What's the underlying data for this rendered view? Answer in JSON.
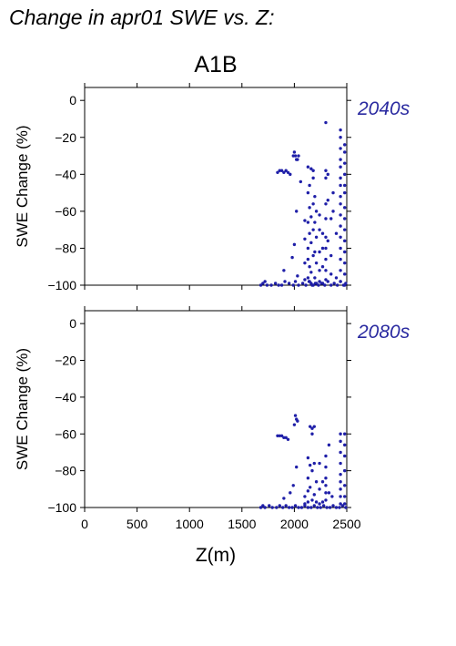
{
  "title": "Change in apr01 SWE vs. Z:",
  "scenario": "A1B",
  "colors": {
    "points": "#1f1fa8",
    "period_label": "#2a2aa0",
    "axis": "#000000"
  },
  "chart_data": [
    {
      "type": "scatter",
      "period": "2040s",
      "ylabel": "SWE Change (%)",
      "xlabel": "",
      "xlim": [
        0,
        2500
      ],
      "ylim": [
        -100,
        7
      ],
      "x_ticks": [
        "0",
        "500",
        "1000",
        "1500",
        "2000",
        "2500"
      ],
      "y_ticks": [
        "0",
        "−20",
        "−40",
        "−60",
        "−80",
        "−100"
      ],
      "x_tick_values": [
        0,
        500,
        1000,
        1500,
        2000,
        2500
      ],
      "y_tick_values": [
        0,
        -20,
        -40,
        -60,
        -80,
        -100
      ],
      "show_x_tick_labels": false,
      "points": [
        [
          1680,
          -100
        ],
        [
          1700,
          -99
        ],
        [
          1720,
          -98
        ],
        [
          1740,
          -100
        ],
        [
          1780,
          -100
        ],
        [
          1820,
          -99
        ],
        [
          1850,
          -100
        ],
        [
          1880,
          -100
        ],
        [
          1910,
          -98
        ],
        [
          1950,
          -99
        ],
        [
          1990,
          -100
        ],
        [
          2010,
          -98
        ],
        [
          2040,
          -100
        ],
        [
          2080,
          -99
        ],
        [
          2110,
          -100
        ],
        [
          2140,
          -98
        ],
        [
          2170,
          -100
        ],
        [
          2200,
          -99
        ],
        [
          2230,
          -100
        ],
        [
          2260,
          -99
        ],
        [
          2290,
          -100
        ],
        [
          2320,
          -98
        ],
        [
          2350,
          -100
        ],
        [
          2380,
          -99
        ],
        [
          2410,
          -100
        ],
        [
          2440,
          -98
        ],
        [
          2470,
          -100
        ],
        [
          2490,
          -99
        ],
        [
          1840,
          -39
        ],
        [
          1860,
          -38
        ],
        [
          1880,
          -38
        ],
        [
          1900,
          -39
        ],
        [
          1920,
          -38
        ],
        [
          1940,
          -39
        ],
        [
          1960,
          -40
        ],
        [
          1900,
          -92
        ],
        [
          1980,
          -85
        ],
        [
          2000,
          -78
        ],
        [
          2020,
          -60
        ],
        [
          2030,
          -95
        ],
        [
          2000,
          -28
        ],
        [
          2010,
          -30
        ],
        [
          2020,
          -32
        ],
        [
          2030,
          -32
        ],
        [
          2040,
          -30
        ],
        [
          1990,
          -30
        ],
        [
          2060,
          -44
        ],
        [
          2100,
          -65
        ],
        [
          2100,
          -75
        ],
        [
          2100,
          -88
        ],
        [
          2100,
          -97
        ],
        [
          2130,
          -36
        ],
        [
          2130,
          -50
        ],
        [
          2130,
          -66
        ],
        [
          2130,
          -80
        ],
        [
          2130,
          -86
        ],
        [
          2130,
          -96
        ],
        [
          2145,
          -46
        ],
        [
          2145,
          -58
        ],
        [
          2145,
          -72
        ],
        [
          2145,
          -90
        ],
        [
          2145,
          -98
        ],
        [
          2160,
          -37
        ],
        [
          2160,
          -63
        ],
        [
          2160,
          -77
        ],
        [
          2160,
          -93
        ],
        [
          2160,
          -99
        ],
        [
          2180,
          -38
        ],
        [
          2180,
          -42
        ],
        [
          2180,
          -56
        ],
        [
          2180,
          -70
        ],
        [
          2180,
          -84
        ],
        [
          2180,
          -100
        ],
        [
          2195,
          -52
        ],
        [
          2195,
          -66
        ],
        [
          2195,
          -82
        ],
        [
          2195,
          -96
        ],
        [
          2210,
          -60
        ],
        [
          2210,
          -74
        ],
        [
          2210,
          -88
        ],
        [
          2210,
          -99
        ],
        [
          2240,
          -62
        ],
        [
          2240,
          -70
        ],
        [
          2240,
          -82
        ],
        [
          2240,
          -92
        ],
        [
          2240,
          -98
        ],
        [
          2270,
          -72
        ],
        [
          2270,
          -80
        ],
        [
          2270,
          -90
        ],
        [
          2270,
          -99
        ],
        [
          2300,
          -12
        ],
        [
          2300,
          -38
        ],
        [
          2300,
          -42
        ],
        [
          2300,
          -56
        ],
        [
          2300,
          -64
        ],
        [
          2300,
          -74
        ],
        [
          2300,
          -80
        ],
        [
          2300,
          -86
        ],
        [
          2300,
          -92
        ],
        [
          2300,
          -97
        ],
        [
          2320,
          -40
        ],
        [
          2320,
          -54
        ],
        [
          2320,
          -76
        ],
        [
          2350,
          -64
        ],
        [
          2350,
          -84
        ],
        [
          2350,
          -94
        ],
        [
          2370,
          -50
        ],
        [
          2370,
          -60
        ],
        [
          2400,
          -72
        ],
        [
          2400,
          -96
        ],
        [
          2440,
          -16
        ],
        [
          2440,
          -20
        ],
        [
          2440,
          -26
        ],
        [
          2440,
          -32
        ],
        [
          2440,
          -36
        ],
        [
          2440,
          -42
        ],
        [
          2440,
          -46
        ],
        [
          2440,
          -52
        ],
        [
          2440,
          -56
        ],
        [
          2440,
          -62
        ],
        [
          2440,
          -68
        ],
        [
          2440,
          -74
        ],
        [
          2440,
          -80
        ],
        [
          2440,
          -86
        ],
        [
          2440,
          -92
        ],
        [
          2440,
          -98
        ],
        [
          2480,
          -24
        ],
        [
          2480,
          -28
        ],
        [
          2480,
          -34
        ],
        [
          2480,
          -40
        ],
        [
          2480,
          -46
        ],
        [
          2480,
          -50
        ],
        [
          2480,
          -58
        ],
        [
          2480,
          -64
        ],
        [
          2480,
          -70
        ],
        [
          2480,
          -76
        ],
        [
          2480,
          -82
        ],
        [
          2480,
          -88
        ],
        [
          2480,
          -94
        ],
        [
          2480,
          -100
        ]
      ]
    },
    {
      "type": "scatter",
      "period": "2080s",
      "ylabel": "SWE Change (%)",
      "xlabel": "Z(m)",
      "xlim": [
        0,
        2500
      ],
      "ylim": [
        -100,
        7
      ],
      "x_ticks": [
        "0",
        "500",
        "1000",
        "1500",
        "2000",
        "2500"
      ],
      "y_ticks": [
        "0",
        "−20",
        "−40",
        "−60",
        "−80",
        "−100"
      ],
      "x_tick_values": [
        0,
        500,
        1000,
        1500,
        2000,
        2500
      ],
      "y_tick_values": [
        0,
        -20,
        -40,
        -60,
        -80,
        -100
      ],
      "show_x_tick_labels": true,
      "points": [
        [
          1680,
          -100
        ],
        [
          1700,
          -99
        ],
        [
          1720,
          -100
        ],
        [
          1760,
          -99
        ],
        [
          1790,
          -100
        ],
        [
          1830,
          -100
        ],
        [
          1860,
          -99
        ],
        [
          1890,
          -100
        ],
        [
          1920,
          -99
        ],
        [
          1950,
          -100
        ],
        [
          1980,
          -100
        ],
        [
          2010,
          -99
        ],
        [
          2040,
          -100
        ],
        [
          2070,
          -100
        ],
        [
          2100,
          -99
        ],
        [
          2130,
          -100
        ],
        [
          2160,
          -100
        ],
        [
          2190,
          -99
        ],
        [
          2220,
          -100
        ],
        [
          2250,
          -100
        ],
        [
          2280,
          -99
        ],
        [
          2310,
          -100
        ],
        [
          2340,
          -100
        ],
        [
          2370,
          -99
        ],
        [
          2400,
          -100
        ],
        [
          2430,
          -100
        ],
        [
          2460,
          -99
        ],
        [
          2490,
          -100
        ],
        [
          1840,
          -61
        ],
        [
          1860,
          -61
        ],
        [
          1880,
          -61
        ],
        [
          1900,
          -62
        ],
        [
          1920,
          -62
        ],
        [
          1940,
          -63
        ],
        [
          1900,
          -95
        ],
        [
          1960,
          -92
        ],
        [
          1990,
          -88
        ],
        [
          2020,
          -78
        ],
        [
          2000,
          -55
        ],
        [
          2010,
          -50
        ],
        [
          2020,
          -52
        ],
        [
          2030,
          -53
        ],
        [
          2100,
          -94
        ],
        [
          2100,
          -98
        ],
        [
          2130,
          -73
        ],
        [
          2130,
          -84
        ],
        [
          2130,
          -91
        ],
        [
          2130,
          -97
        ],
        [
          2150,
          -56
        ],
        [
          2150,
          -77
        ],
        [
          2150,
          -89
        ],
        [
          2170,
          -57
        ],
        [
          2170,
          -60
        ],
        [
          2170,
          -80
        ],
        [
          2170,
          -96
        ],
        [
          2190,
          -56
        ],
        [
          2190,
          -76
        ],
        [
          2190,
          -93
        ],
        [
          2210,
          -86
        ],
        [
          2210,
          -97
        ],
        [
          2240,
          -76
        ],
        [
          2240,
          -90
        ],
        [
          2240,
          -98
        ],
        [
          2270,
          -86
        ],
        [
          2270,
          -97
        ],
        [
          2300,
          -72
        ],
        [
          2300,
          -78
        ],
        [
          2300,
          -84
        ],
        [
          2300,
          -88
        ],
        [
          2300,
          -92
        ],
        [
          2300,
          -96
        ],
        [
          2330,
          -66
        ],
        [
          2330,
          -92
        ],
        [
          2360,
          -94
        ],
        [
          2440,
          -60
        ],
        [
          2440,
          -64
        ],
        [
          2440,
          -70
        ],
        [
          2440,
          -76
        ],
        [
          2440,
          -82
        ],
        [
          2440,
          -86
        ],
        [
          2440,
          -90
        ],
        [
          2440,
          -94
        ],
        [
          2440,
          -98
        ],
        [
          2480,
          -60
        ],
        [
          2480,
          -66
        ],
        [
          2480,
          -72
        ],
        [
          2480,
          -80
        ],
        [
          2480,
          -88
        ],
        [
          2480,
          -94
        ],
        [
          2480,
          -98
        ]
      ]
    }
  ]
}
